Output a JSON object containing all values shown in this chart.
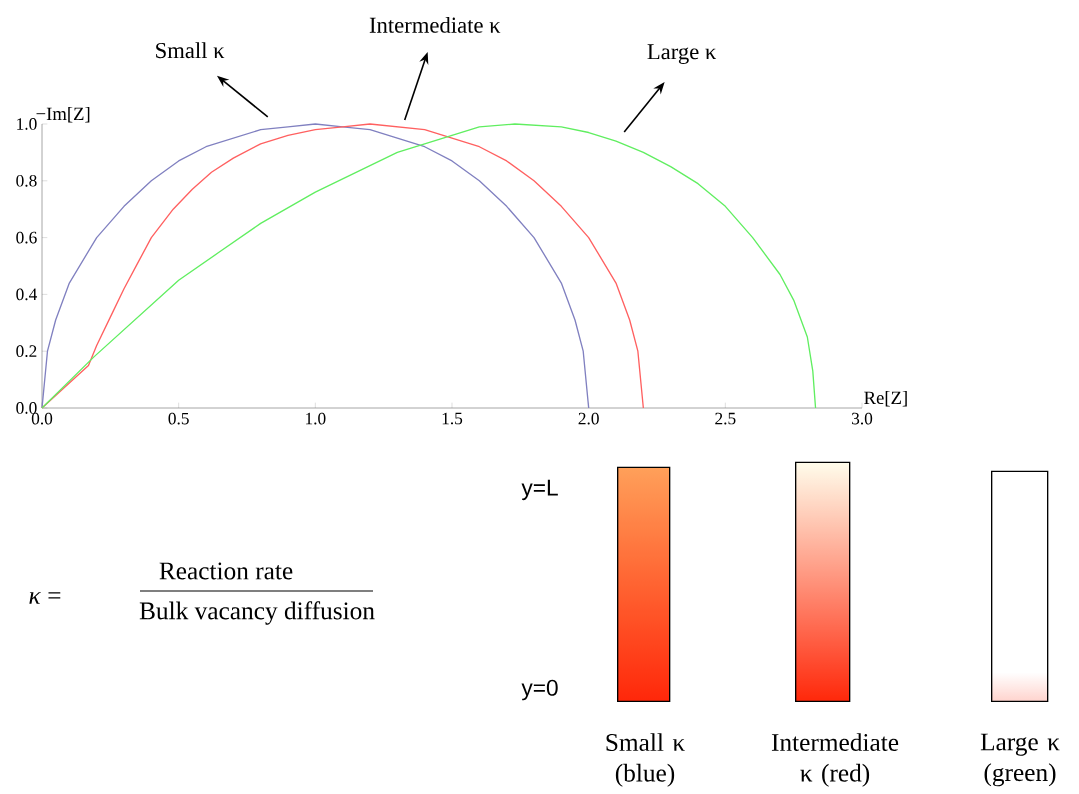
{
  "chart_data": {
    "type": "line",
    "xlabel": "Re[Z]",
    "ylabel": "−Im[Z]",
    "xlim": [
      0,
      3
    ],
    "ylim": [
      0,
      1
    ],
    "xticks": [
      {
        "value": 0,
        "label": "0.0"
      },
      {
        "value": 0.5,
        "label": "0.5"
      },
      {
        "value": 1,
        "label": "1.0"
      },
      {
        "value": 1.5,
        "label": "1.5"
      },
      {
        "value": 2,
        "label": "2.0"
      },
      {
        "value": 2.5,
        "label": "2.5"
      },
      {
        "value": 3,
        "label": "3.0"
      }
    ],
    "yticks": [
      {
        "value": 0,
        "label": "0.0"
      },
      {
        "value": 0.2,
        "label": "0.2"
      },
      {
        "value": 0.4,
        "label": "0.4"
      },
      {
        "value": 0.6,
        "label": "0.6"
      },
      {
        "value": 0.8,
        "label": "0.8"
      },
      {
        "value": 1,
        "label": "1.0"
      }
    ],
    "series": [
      {
        "name": "Small κ",
        "color": "#8080c0",
        "x": [
          0,
          0.02,
          0.05,
          0.1,
          0.2,
          0.3,
          0.4,
          0.5,
          0.6,
          0.7,
          0.8,
          0.9,
          1.0,
          1.1,
          1.2,
          1.3,
          1.4,
          1.5,
          1.6,
          1.7,
          1.8,
          1.9,
          1.95,
          1.98,
          2.0
        ],
        "values": [
          0,
          0.2,
          0.31,
          0.44,
          0.6,
          0.71,
          0.8,
          0.87,
          0.92,
          0.95,
          0.98,
          0.99,
          1.0,
          0.99,
          0.98,
          0.95,
          0.92,
          0.87,
          0.8,
          0.71,
          0.6,
          0.44,
          0.31,
          0.2,
          0
        ]
      },
      {
        "name": "Intermediate κ",
        "color": "#ff6060",
        "x": [
          0,
          0.17,
          0.2,
          0.25,
          0.3,
          0.35,
          0.4,
          0.48,
          0.55,
          0.62,
          0.7,
          0.8,
          0.9,
          1.0,
          1.1,
          1.2,
          1.4,
          1.5,
          1.6,
          1.7,
          1.8,
          1.9,
          2.0,
          2.1,
          2.15,
          2.18,
          2.2
        ],
        "values": [
          0,
          0.15,
          0.22,
          0.32,
          0.42,
          0.51,
          0.6,
          0.7,
          0.77,
          0.83,
          0.88,
          0.93,
          0.96,
          0.98,
          0.99,
          1.0,
          0.98,
          0.95,
          0.92,
          0.87,
          0.8,
          0.71,
          0.6,
          0.44,
          0.31,
          0.2,
          0
        ]
      },
      {
        "name": "Large κ",
        "color": "#60ee60",
        "x": [
          0,
          0.19,
          0.5,
          0.65,
          0.8,
          1.0,
          1.15,
          1.3,
          1.4,
          1.5,
          1.6,
          1.73,
          1.9,
          2.0,
          2.1,
          2.2,
          2.3,
          2.4,
          2.5,
          2.6,
          2.7,
          2.75,
          2.8,
          2.82,
          2.83
        ],
        "values": [
          0,
          0.18,
          0.45,
          0.55,
          0.65,
          0.76,
          0.83,
          0.9,
          0.93,
          0.96,
          0.99,
          1.0,
          0.99,
          0.97,
          0.94,
          0.9,
          0.85,
          0.79,
          0.71,
          0.6,
          0.47,
          0.38,
          0.25,
          0.13,
          0
        ]
      }
    ],
    "annotations": [
      "*κ* =",
      "Reaction rate",
      "Bulk vacancy diffusion",
      "y=L",
      "y=0",
      "Small κ (blue)",
      "Intermediate κ (red)",
      "Large κ (green)"
    ]
  }
}
